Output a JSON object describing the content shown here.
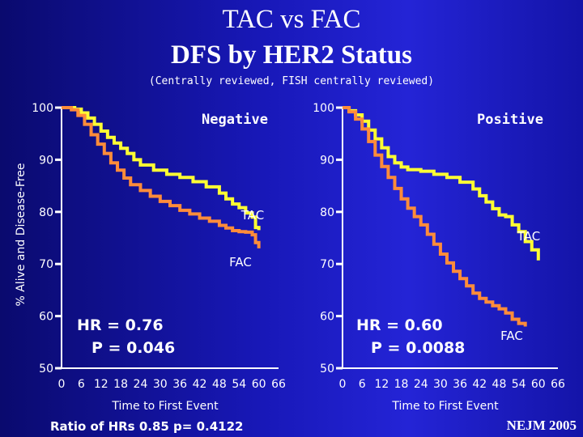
{
  "title_line1": "TAC vs FAC",
  "title_line2": "DFS by HER2 Status",
  "subtitle": "(Centrally reviewed, FISH centrally reviewed)",
  "ylabel": "% Alive and Disease-Free",
  "footer_left": "Ratio of HRs 0.85 p= 0.4122",
  "footer_right": "NEJM 2005",
  "colors": {
    "TAC": "#ffff33",
    "FAC": "#ff8c3a",
    "axis": "#ffffff"
  },
  "chart_data": [
    {
      "type": "line",
      "title": "Negative",
      "xlabel": "Time to First Event",
      "xticks": [
        0,
        6,
        12,
        18,
        24,
        30,
        36,
        42,
        48,
        54,
        60,
        66
      ],
      "yticks": [
        50,
        60,
        70,
        80,
        90,
        100
      ],
      "xlim": [
        0,
        66
      ],
      "ylim": [
        50,
        100
      ],
      "annotation": [
        "HR = 0.76",
        "P = 0.046"
      ],
      "series": [
        {
          "name": "TAC",
          "x": [
            0,
            4,
            6,
            8,
            10,
            12,
            14,
            16,
            18,
            20,
            22,
            24,
            28,
            32,
            36,
            40,
            44,
            48,
            50,
            52,
            54,
            56,
            58,
            59,
            60
          ],
          "y": [
            100,
            99.7,
            99,
            98,
            96.8,
            95.5,
            94.3,
            93.2,
            92.2,
            91.2,
            90,
            89,
            88,
            87.2,
            86.6,
            85.8,
            84.8,
            83.6,
            82.5,
            81.5,
            80.8,
            79.8,
            79,
            77,
            76.5
          ]
        },
        {
          "name": "FAC",
          "x": [
            0,
            3,
            5,
            7,
            9,
            11,
            13,
            15,
            17,
            19,
            21,
            24,
            27,
            30,
            33,
            36,
            39,
            42,
            45,
            48,
            50,
            52,
            54,
            56,
            58,
            59,
            60
          ],
          "y": [
            100,
            99.6,
            98.5,
            96.8,
            94.8,
            93,
            91.2,
            89.4,
            88,
            86.5,
            85.2,
            84.1,
            83,
            82,
            81.2,
            80.3,
            79.6,
            78.8,
            78.2,
            77.4,
            76.9,
            76.4,
            76.2,
            76.1,
            75.6,
            74.1,
            73
          ]
        }
      ]
    },
    {
      "type": "line",
      "title": "Positive",
      "xlabel": "Time to First Event",
      "xticks": [
        0,
        6,
        12,
        18,
        24,
        30,
        36,
        42,
        48,
        54,
        60,
        66
      ],
      "yticks": [
        50,
        60,
        70,
        80,
        90,
        100
      ],
      "xlim": [
        0,
        66
      ],
      "ylim": [
        50,
        100
      ],
      "annotation": [
        "HR = 0.60",
        "P = 0.0088"
      ],
      "series": [
        {
          "name": "TAC",
          "x": [
            0,
            2,
            4,
            6,
            8,
            10,
            12,
            14,
            16,
            18,
            20,
            24,
            28,
            32,
            36,
            40,
            42,
            44,
            46,
            48,
            50,
            52,
            54,
            56,
            58,
            60
          ],
          "y": [
            100,
            99.4,
            98.6,
            97.4,
            95.7,
            94,
            92.3,
            90.6,
            89.4,
            88.6,
            88.1,
            87.8,
            87.2,
            86.6,
            85.7,
            84.4,
            83.1,
            81.9,
            80.6,
            79.4,
            79.1,
            77.5,
            76.2,
            74.3,
            72.7,
            70.7
          ]
        },
        {
          "name": "FAC",
          "x": [
            0,
            2,
            4,
            6,
            8,
            10,
            12,
            14,
            16,
            18,
            20,
            22,
            24,
            26,
            28,
            30,
            32,
            34,
            36,
            38,
            40,
            42,
            44,
            46,
            48,
            50,
            52,
            54,
            56
          ],
          "y": [
            100,
            99.2,
            97.8,
            95.9,
            93.5,
            90.9,
            88.7,
            86.6,
            84.5,
            82.5,
            80.7,
            79.1,
            77.5,
            75.7,
            73.8,
            71.9,
            70.2,
            68.6,
            67.2,
            65.8,
            64.4,
            63.4,
            62.7,
            62,
            61.4,
            60.6,
            59.4,
            58.6,
            58
          ]
        }
      ]
    }
  ]
}
